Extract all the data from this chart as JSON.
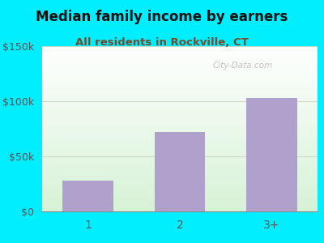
{
  "categories": [
    "1",
    "2",
    "3+"
  ],
  "values": [
    28000,
    72000,
    103000
  ],
  "bar_color": "#b0a0cc",
  "title": "Median family income by earners",
  "subtitle": "All residents in Rockville, CT",
  "title_fontsize": 12,
  "subtitle_fontsize": 9.5,
  "ylim": [
    0,
    150000
  ],
  "yticks": [
    0,
    50000,
    100000,
    150000
  ],
  "ytick_labels": [
    "$0",
    "$50k",
    "$100k",
    "$150k"
  ],
  "background_color": "#00eeff",
  "watermark": "City-Data.com",
  "subtitle_color": "#7a4a2a",
  "title_color": "#111111",
  "tick_color": "#555555",
  "grid_color": "#d0d8c8",
  "bar_width": 0.55
}
